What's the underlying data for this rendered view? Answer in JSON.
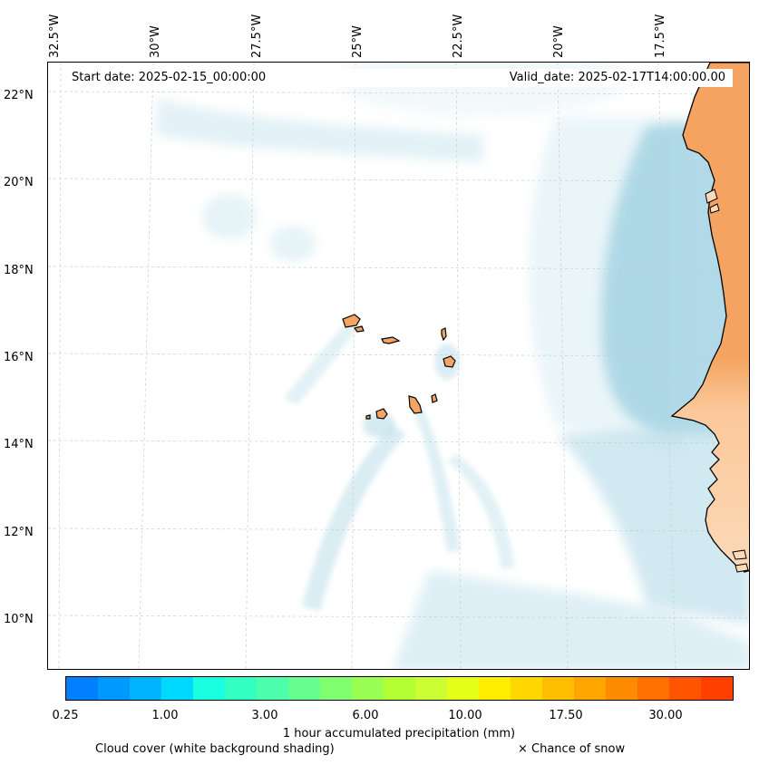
{
  "map": {
    "start_date": "Start date: 2025-02-15_00:00:00",
    "valid_date": "Valid_date: 2025-02-17T14:00:00.00",
    "lon_labels": [
      "32.5°W",
      "30°W",
      "27.5°W",
      "25°W",
      "22.5°W",
      "20°W",
      "17.5°W"
    ],
    "lat_labels": [
      "22°N",
      "20°N",
      "18°N",
      "16°N",
      "14°N",
      "12°N",
      "10°N"
    ],
    "colors": {
      "land_north": "#f4a460",
      "land_south": "#fdd9b8",
      "cloud": "#add8e6",
      "coastline": "#000000"
    }
  },
  "colorbar": {
    "label": "1 hour accumulated precipitation (mm)",
    "ticks": [
      "0.25",
      "1.00",
      "3.00",
      "6.00",
      "10.00",
      "17.50",
      "30.00"
    ],
    "colors": [
      "#0080ff",
      "#0099ff",
      "#00b3ff",
      "#00d9ff",
      "#19ffe0",
      "#33ffc2",
      "#4dffad",
      "#66ff8f",
      "#80ff70",
      "#99ff52",
      "#b3ff33",
      "#ccff33",
      "#e6ff19",
      "#ffee00",
      "#ffd600",
      "#ffbf00",
      "#ffa500",
      "#ff8c00",
      "#ff7000",
      "#ff5500",
      "#ff4000"
    ]
  },
  "legend": {
    "cloud_cover": "Cloud cover (white background shading)",
    "snow": "× Chance of snow"
  }
}
